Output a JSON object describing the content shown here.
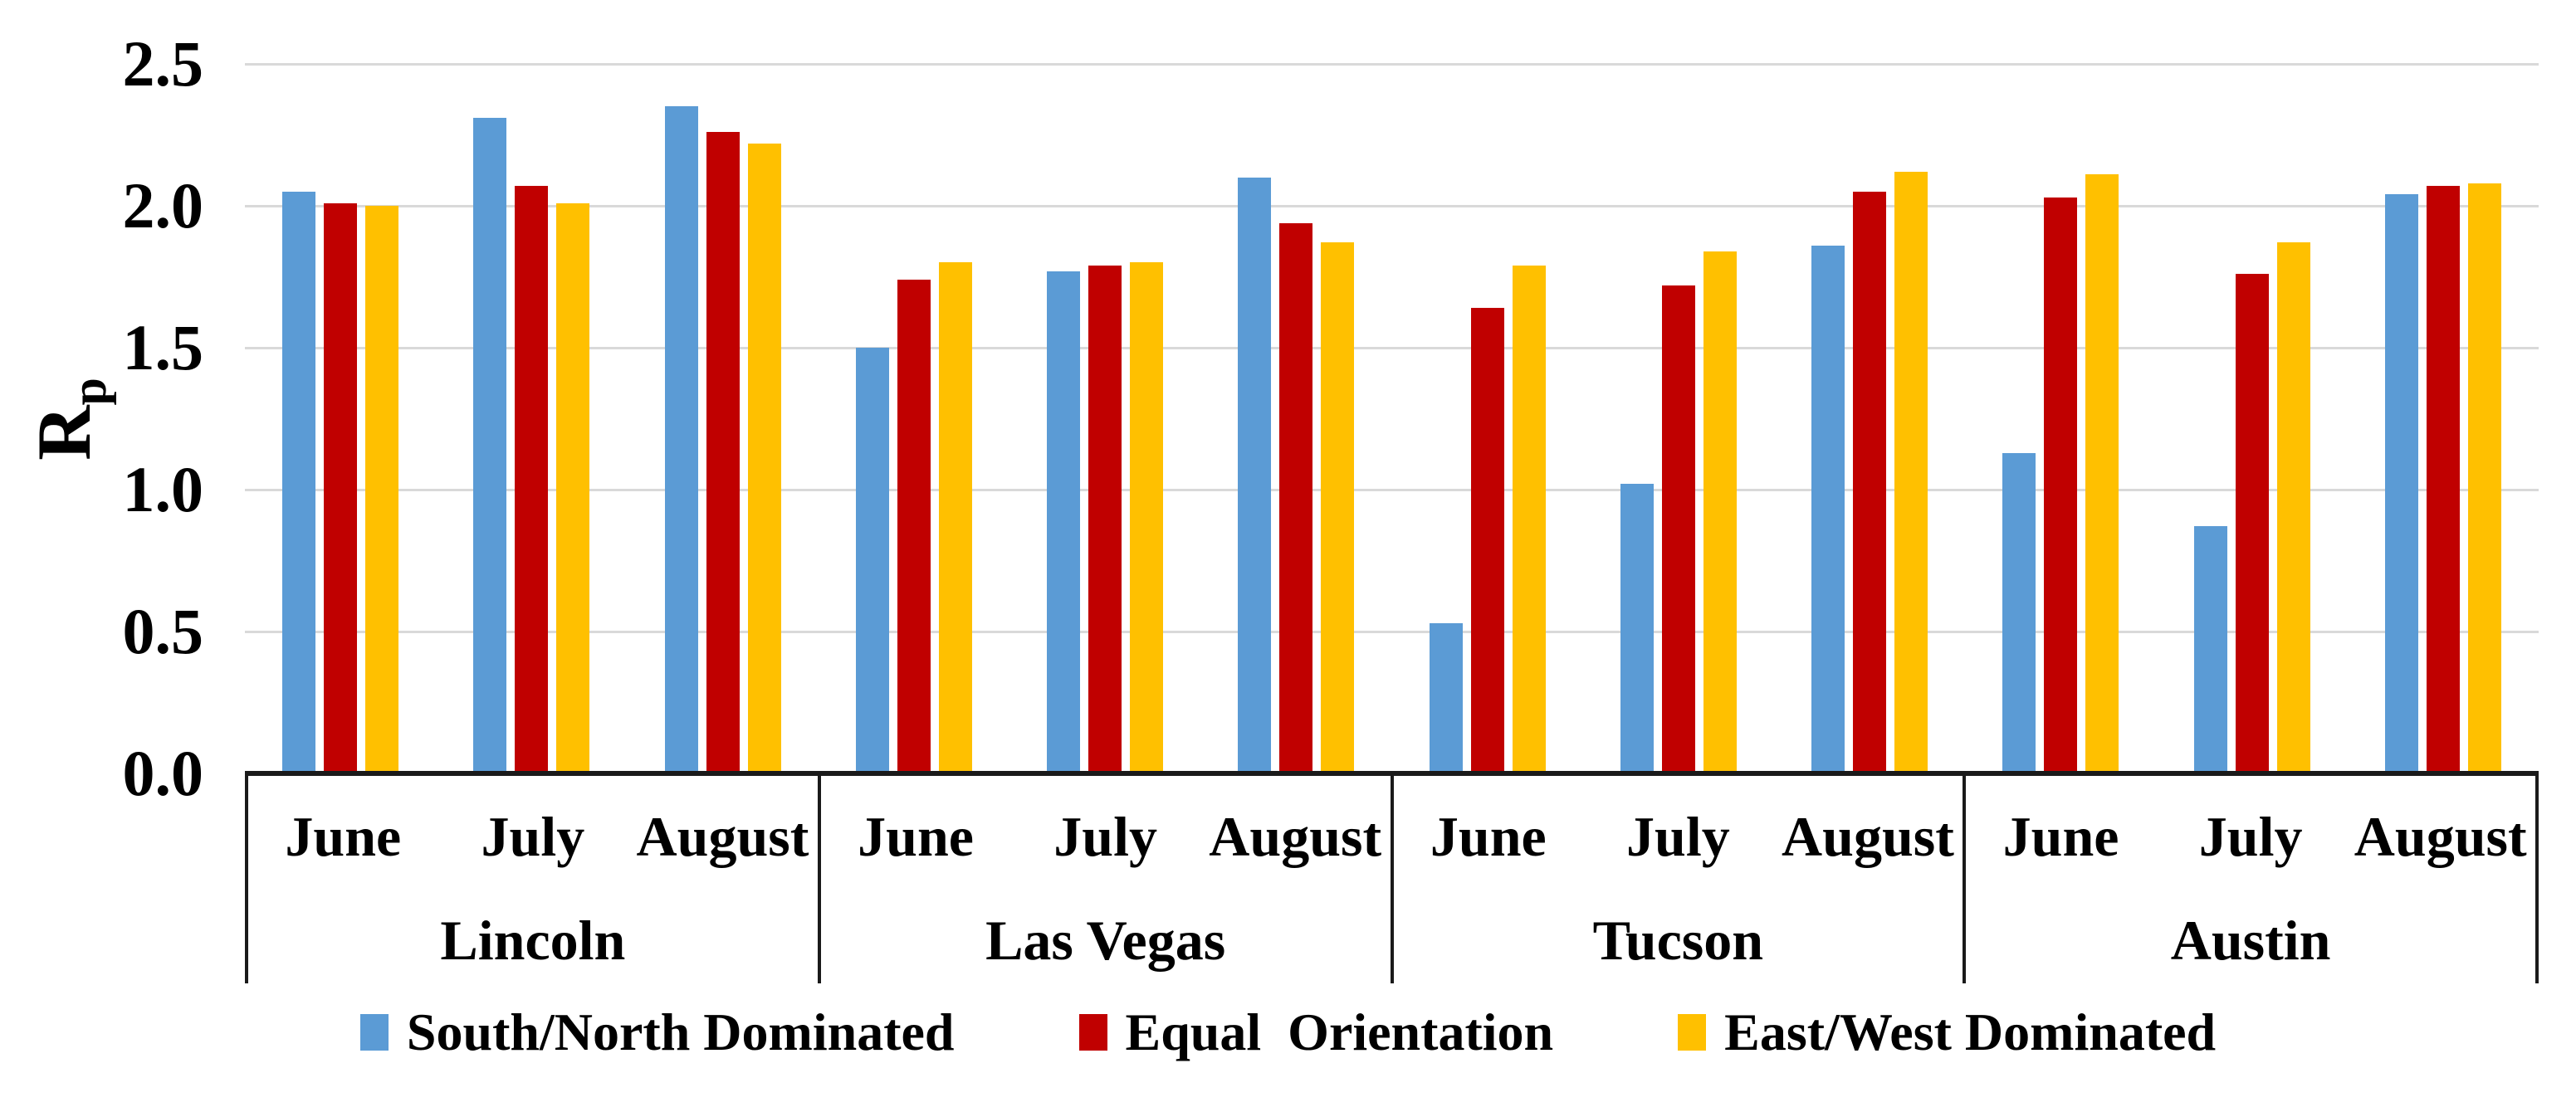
{
  "y_axis": {
    "title_base": "R",
    "title_sub": "p",
    "ticks": [
      "2.5",
      "2.0",
      "1.5",
      "1.0",
      "0.5",
      "0.0"
    ]
  },
  "legend": {
    "items": [
      {
        "label": "South/North Dominated",
        "color": "#5B9BD5"
      },
      {
        "label": "Equal  Orientation",
        "color": "#C00000"
      },
      {
        "label": "East/West Dominated",
        "color": "#FFC000"
      }
    ]
  },
  "colors": {
    "gridline": "#D9D9D9",
    "axis": "#1a1a1a",
    "background": "#ffffff"
  },
  "chart_data": {
    "type": "bar",
    "title": "",
    "xlabel": "",
    "ylabel": "Rp",
    "ylim": [
      0,
      2.5
    ],
    "ytick_step": 0.5,
    "grid": true,
    "legend_position": "bottom",
    "categories": [
      "Lincoln",
      "Las Vegas",
      "Tucson",
      "Austin"
    ],
    "subcategories": [
      "June",
      "July",
      "August"
    ],
    "series": [
      {
        "name": "South/North Dominated",
        "color": "#5B9BD5",
        "values": [
          [
            2.05,
            2.31,
            2.35
          ],
          [
            1.5,
            1.77,
            2.1
          ],
          [
            0.53,
            1.02,
            1.86
          ],
          [
            1.13,
            0.87,
            2.04
          ]
        ]
      },
      {
        "name": "Equal  Orientation",
        "color": "#C00000",
        "values": [
          [
            2.01,
            2.07,
            2.26
          ],
          [
            1.74,
            1.79,
            1.94
          ],
          [
            1.64,
            1.72,
            2.05
          ],
          [
            2.03,
            1.76,
            2.07
          ]
        ]
      },
      {
        "name": "East/West Dominated",
        "color": "#FFC000",
        "values": [
          [
            2.0,
            2.01,
            2.22
          ],
          [
            1.8,
            1.8,
            1.87
          ],
          [
            1.79,
            1.84,
            2.12
          ],
          [
            2.11,
            1.87,
            2.08
          ]
        ]
      }
    ]
  }
}
